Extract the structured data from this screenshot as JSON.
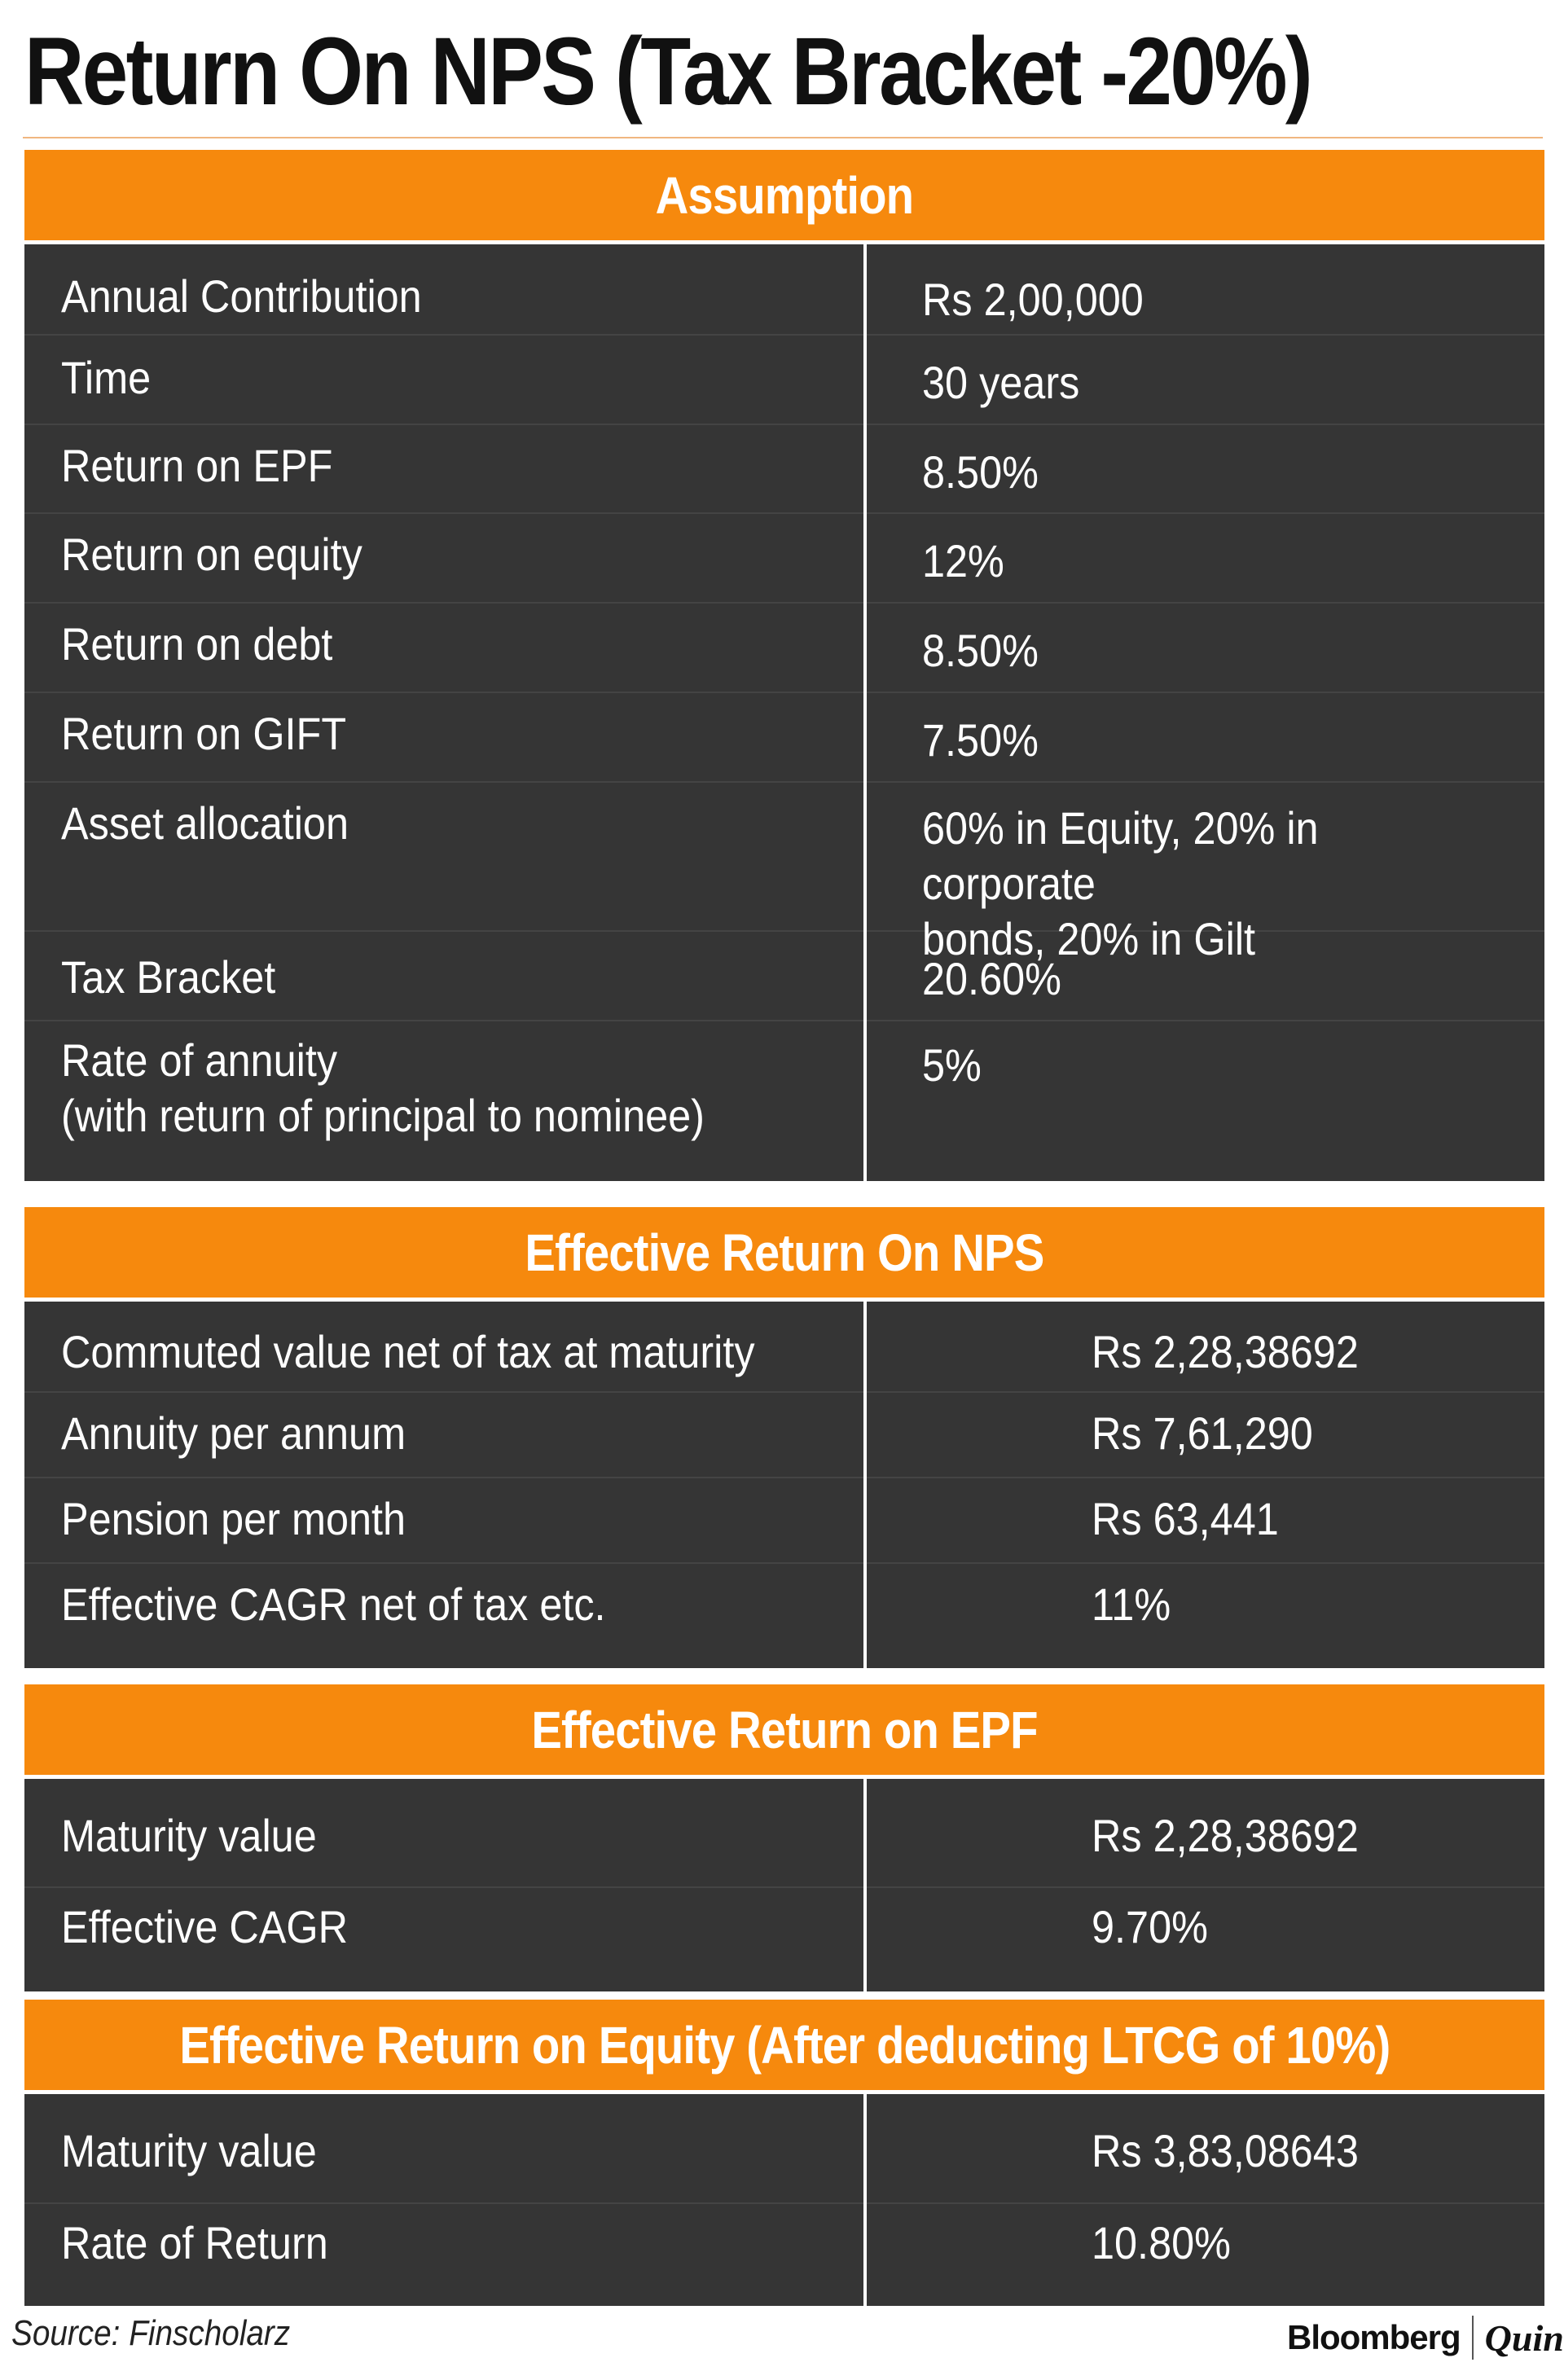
{
  "title": "Return On NPS (Tax Bracket -20%)",
  "sections": [
    {
      "heading": "Assumption",
      "rows": [
        {
          "label": "Annual Contribution",
          "value": "Rs 2,00,000"
        },
        {
          "label": "Time",
          "value": "30 years"
        },
        {
          "label": "Return on EPF",
          "value": "8.50%"
        },
        {
          "label": "Return on equity",
          "value": "12%"
        },
        {
          "label": "Return on debt",
          "value": "8.50%"
        },
        {
          "label": "Return on GIFT",
          "value": "7.50%"
        },
        {
          "label": "Asset allocation",
          "value": "60% in Equity, 20% in corporate",
          "value2": "bonds, 20% in Gilt"
        },
        {
          "label": "Tax Bracket",
          "value": "20.60%"
        },
        {
          "label": "Rate of annuity",
          "label2": "(with return of principal to nominee)",
          "value": "5%"
        }
      ]
    },
    {
      "heading": "Effective Return On NPS",
      "rows": [
        {
          "label": "Commuted value net of tax at maturity",
          "value": "Rs 2,28,38692"
        },
        {
          "label": "Annuity per annum",
          "value": "Rs 7,61,290"
        },
        {
          "label": "Pension per month",
          "value": "Rs 63,441"
        },
        {
          "label": "Effective CAGR net of tax etc.",
          "value": "11%"
        }
      ]
    },
    {
      "heading": "Effective Return on EPF",
      "rows": [
        {
          "label": "Maturity value",
          "value": "Rs 2,28,38692"
        },
        {
          "label": "Effective CAGR",
          "value": "9.70%"
        }
      ]
    },
    {
      "heading": "Effective Return on Equity (After deducting LTCG of 10%)",
      "rows": [
        {
          "label": "Maturity value",
          "value": "Rs 3,83,08643"
        },
        {
          "label": "Rate of Return",
          "value": "10.80%"
        }
      ]
    }
  ],
  "footer": {
    "source": "Source: Finscholarz",
    "brand_primary": "Bloomberg",
    "brand_secondary": "Quint"
  }
}
